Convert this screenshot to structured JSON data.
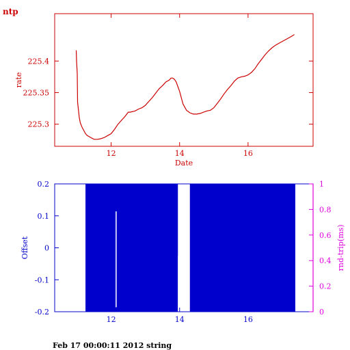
{
  "title": "ntp",
  "footer": "Feb 17 00:00:11 2012 string",
  "colors": {
    "rate": "#cc0000",
    "offset": "#0000cc",
    "rtt": "#e000e0",
    "footer": "#000000"
  },
  "chart_data": [
    {
      "type": "line",
      "xlabel": "Date",
      "ylabel": "rate",
      "xlim": [
        10.35,
        17.9
      ],
      "ylim": [
        225.265,
        225.475
      ],
      "xticks": [
        12,
        14,
        16
      ],
      "xtick_labels": [
        "12",
        "14",
        "16"
      ],
      "yticks": [
        225.3,
        225.35,
        225.4
      ],
      "ytick_labels": [
        "225.3",
        "225.35",
        "225.4"
      ],
      "grid": false,
      "series": [
        {
          "x": [
            10.98,
            10.99,
            11.01,
            11.02,
            11.03,
            11.05,
            11.07,
            11.1,
            11.15,
            11.2,
            11.25,
            11.3,
            11.4,
            11.5,
            11.6,
            11.7,
            11.8,
            11.9,
            12.0,
            12.1,
            12.2,
            12.3,
            12.4,
            12.5,
            12.55,
            12.7,
            12.8,
            12.9,
            13.0,
            13.1,
            13.2,
            13.3,
            13.4,
            13.5,
            13.6,
            13.7,
            13.75,
            13.8,
            13.85,
            13.9,
            14.0,
            14.1,
            14.2,
            14.3,
            14.4,
            14.5,
            14.6,
            14.7,
            14.8,
            14.9,
            15.0,
            15.1,
            15.2,
            15.3,
            15.4,
            15.5,
            15.6,
            15.7,
            15.8,
            15.9,
            16.0,
            16.1,
            16.2,
            16.3,
            16.4,
            16.5,
            16.6,
            16.7,
            16.8,
            16.9,
            17.0,
            17.1,
            17.2,
            17.3,
            17.35
          ],
          "y": [
            225.417,
            225.4,
            225.38,
            225.335,
            225.33,
            225.32,
            225.31,
            225.302,
            225.295,
            225.29,
            225.285,
            225.282,
            225.279,
            225.276,
            225.276,
            225.277,
            225.279,
            225.282,
            225.285,
            225.292,
            225.3,
            225.306,
            225.312,
            225.319,
            225.319,
            225.321,
            225.324,
            225.326,
            225.33,
            225.336,
            225.342,
            225.349,
            225.356,
            225.361,
            225.367,
            225.37,
            225.373,
            225.373,
            225.371,
            225.367,
            225.352,
            225.332,
            225.322,
            225.318,
            225.316,
            225.316,
            225.317,
            225.319,
            225.321,
            225.322,
            225.326,
            225.333,
            225.34,
            225.348,
            225.355,
            225.361,
            225.368,
            225.373,
            225.375,
            225.376,
            225.378,
            225.382,
            225.388,
            225.396,
            225.403,
            225.41,
            225.416,
            225.421,
            225.425,
            225.428,
            225.431,
            225.434,
            225.437,
            225.44,
            225.442
          ]
        }
      ]
    },
    {
      "type": "area",
      "xlabel": "",
      "ylabel": "Offset",
      "ylabel_right": "rnd-trip(ms)",
      "xlim": [
        10.35,
        17.9
      ],
      "ylim": [
        -0.2,
        0.2
      ],
      "ylim_right": [
        0,
        1
      ],
      "xticks": [
        12,
        14,
        16
      ],
      "xtick_labels": [
        "12",
        "14",
        "16"
      ],
      "yticks": [
        -0.2,
        -0.1,
        0,
        0.1,
        0.2
      ],
      "ytick_labels": [
        "-0.2",
        "-0.1",
        "0",
        "0.1",
        "0.2"
      ],
      "yticks_right": [
        0,
        0.2,
        0.4,
        0.6,
        0.8,
        1
      ],
      "ytick_labels_right": [
        "0",
        "0.2",
        "0.4",
        "0.6",
        "0.8",
        "1"
      ],
      "grid": false,
      "series": [
        {
          "x_start": 11.25,
          "x_end": 13.95,
          "y_low": -0.2,
          "y_high": 0.2
        },
        {
          "x_start": 14.3,
          "x_end": 17.38,
          "y_low": -0.2,
          "y_high": 0.2
        }
      ],
      "gaps": [
        {
          "x_start": 12.13,
          "x_end": 12.16,
          "y_low": -0.186,
          "y_high": 0.114
        },
        {
          "x_start": 13.95,
          "x_end": 13.97,
          "y_low": -0.2,
          "y_high": -0.025
        }
      ]
    }
  ]
}
